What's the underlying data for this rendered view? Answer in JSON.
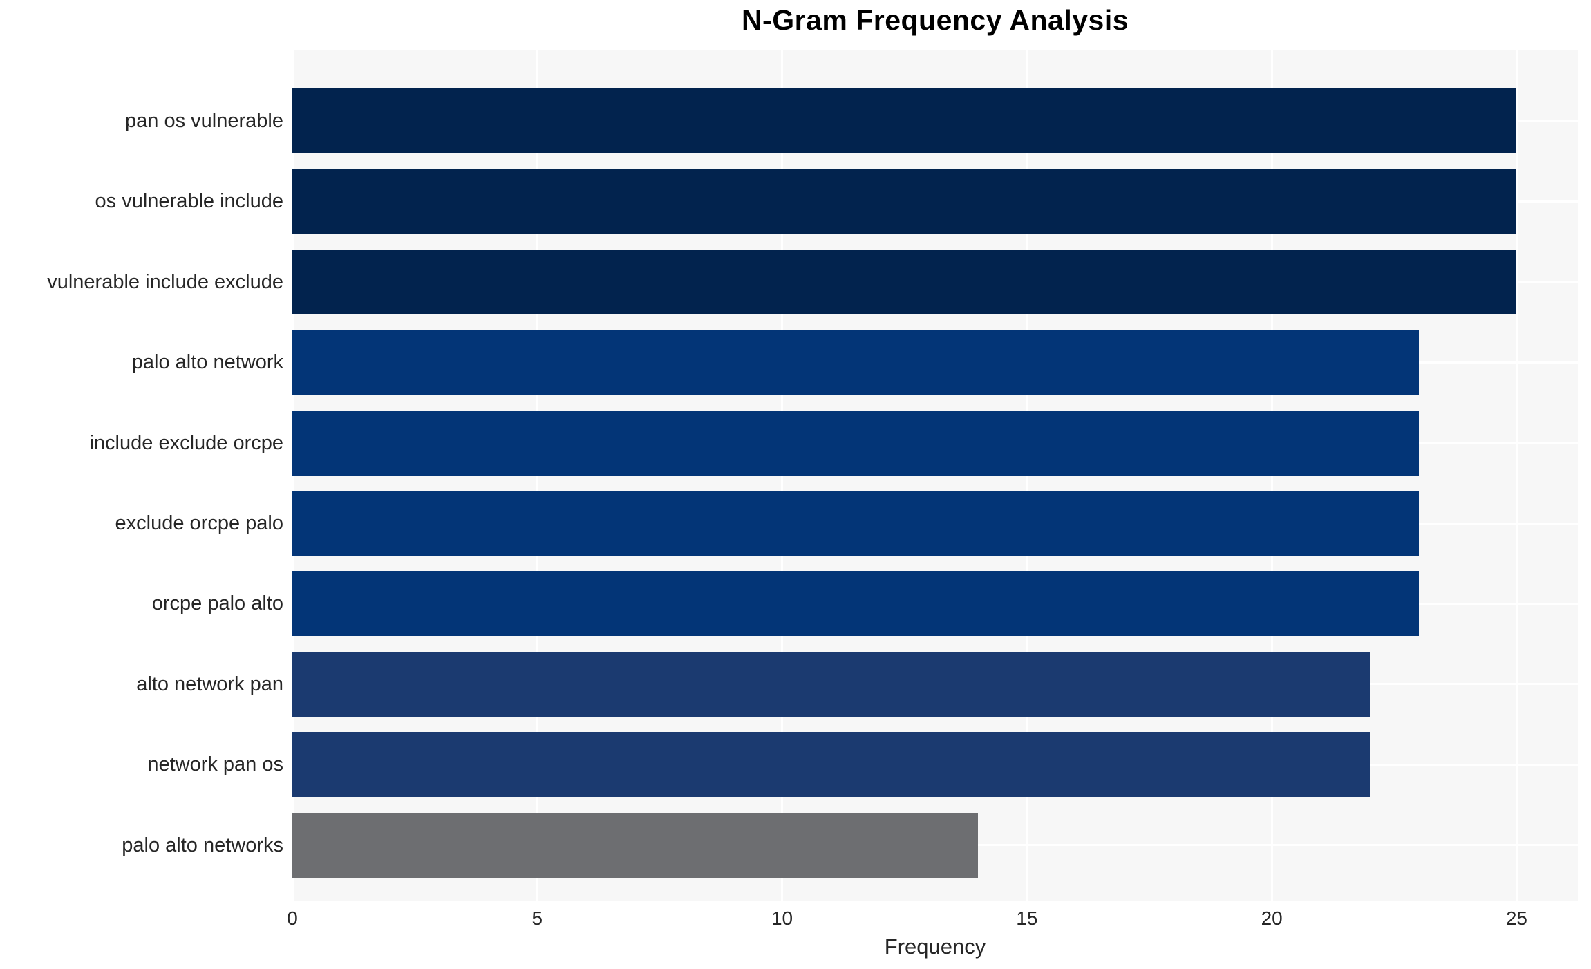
{
  "chart_data": {
    "type": "bar",
    "orientation": "horizontal",
    "title": "N-Gram Frequency Analysis",
    "xlabel": "Frequency",
    "ylabel": "",
    "categories": [
      "pan os vulnerable",
      "os vulnerable include",
      "vulnerable include exclude",
      "palo alto network",
      "include exclude orcpe",
      "exclude orcpe palo",
      "orcpe palo alto",
      "alto network pan",
      "network pan os",
      "palo alto networks"
    ],
    "values": [
      25,
      25,
      25,
      23,
      23,
      23,
      23,
      22,
      22,
      14
    ],
    "bar_colors": [
      "#02234e",
      "#02234e",
      "#02234e",
      "#033577",
      "#033577",
      "#033577",
      "#033577",
      "#1b3a70",
      "#1b3a70",
      "#6d6e71"
    ],
    "xticks": [
      0,
      5,
      10,
      15,
      20,
      25
    ],
    "xlim": [
      0,
      26.25
    ],
    "grid": true,
    "legend_position": "none",
    "plot_background": "#f7f7f7",
    "grid_color": "#ffffff",
    "title_color": "#000000",
    "tick_label_color": "#262626"
  }
}
